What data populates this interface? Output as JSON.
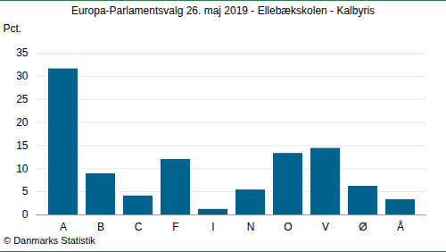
{
  "chart_data": {
    "type": "bar",
    "title": "Europa-Parlamentsvalg 26. maj 2019 - Ellebækskolen - Kalbyris",
    "caption": "© Danmarks Statistik",
    "y_label": "Pct.",
    "categories": [
      "A",
      "B",
      "C",
      "F",
      "I",
      "N",
      "O",
      "V",
      "Ø",
      "Å"
    ],
    "values": [
      31.6,
      8.9,
      4.1,
      12.0,
      1.2,
      5.4,
      13.3,
      14.4,
      6.2,
      3.3
    ],
    "color": "#00628f",
    "ylim": [
      0,
      35
    ],
    "yticks": [
      0,
      5,
      10,
      15,
      20,
      25,
      30,
      35
    ],
    "grid": true
  }
}
